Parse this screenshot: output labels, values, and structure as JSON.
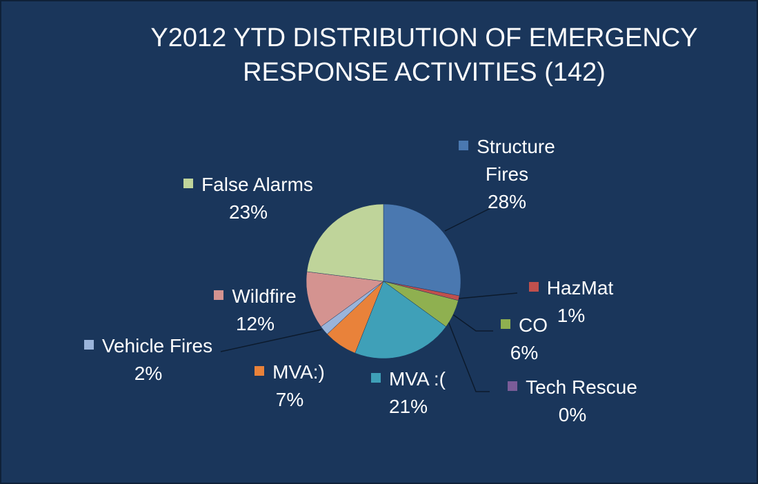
{
  "chart_data": {
    "type": "pie",
    "title": "Y2012 YTD DISTRIBUTION OF EMERGENCY RESPONSE ACTIVITIES  (142)",
    "categories": [
      "Structure Fires",
      "HazMat",
      "CO",
      "Tech Rescue",
      "MVA :(",
      "MVA:)",
      "Vehicle Fires",
      "Wildfire",
      "False Alarms"
    ],
    "values": [
      28,
      1,
      6,
      0,
      21,
      7,
      2,
      12,
      23
    ],
    "value_labels": [
      "28%",
      "1%",
      "6%",
      "0%",
      "21%",
      "7%",
      "2%",
      "12%",
      "23%"
    ],
    "colors": [
      "#4a78b0",
      "#c0504d",
      "#8fb050",
      "#7a5c98",
      "#3fa0b8",
      "#e9823a",
      "#9ab4da",
      "#d49390",
      "#bfd49a"
    ],
    "legend": "labels"
  }
}
